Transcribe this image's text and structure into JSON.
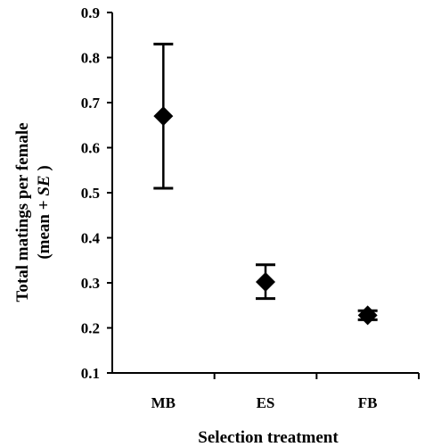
{
  "chart_data": {
    "type": "scatter",
    "categories": [
      "MB",
      "ES",
      "FB"
    ],
    "series": [
      {
        "values": [
          0.67,
          0.302,
          0.228
        ],
        "error_low": [
          0.51,
          0.265,
          0.218
        ],
        "error_high": [
          0.83,
          0.34,
          0.238
        ]
      }
    ],
    "xlabel": "Selection treatment",
    "ylabel": {
      "line1": "Total matings per female",
      "line2_prefix": "(mean + ",
      "line2_italic": "SE",
      "line2_suffix": " )"
    },
    "ylim": [
      0.1,
      0.9
    ],
    "yticks": [
      "0.1",
      "0.2",
      "0.3",
      "0.4",
      "0.5",
      "0.6",
      "0.7",
      "0.8",
      "0.9"
    ],
    "grid": false,
    "marker": "diamond",
    "colors": {
      "marker": "#000000",
      "axis": "#000000"
    }
  }
}
